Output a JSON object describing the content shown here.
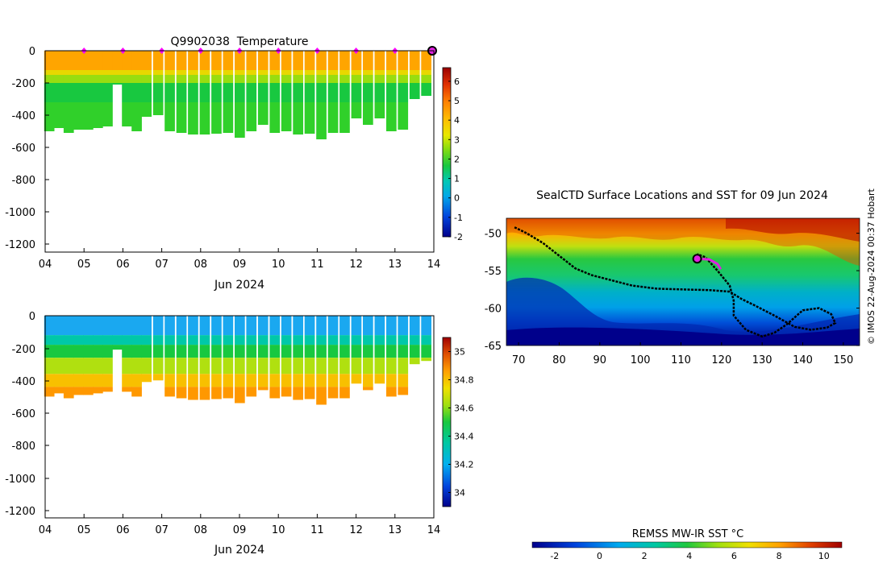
{
  "chart_data": [
    {
      "type": "heatmap",
      "title": "Q9902038  Temperature",
      "xlabel": "Jun 2024",
      "x_ticks": [
        "04",
        "05",
        "06",
        "07",
        "08",
        "09",
        "10",
        "11",
        "12",
        "13",
        "14"
      ],
      "x_range_days": [
        4,
        14
      ],
      "ylim": [
        -1250,
        0
      ],
      "y_ticks": [
        0,
        -200,
        -400,
        -600,
        -800,
        -1000,
        -1200
      ],
      "y_tick_labels": [
        "0",
        "-200",
        "-400",
        "-600",
        "-800",
        "-1000",
        "-1200"
      ],
      "colorbar": {
        "min": -2,
        "max": 6.7,
        "ticks": [
          -2,
          -1,
          0,
          1,
          2,
          3,
          4,
          5,
          6
        ],
        "labels": [
          "-2",
          "-1",
          "0",
          "1",
          "2",
          "3",
          "4",
          "5",
          "6"
        ]
      },
      "profile_times": [
        4.1,
        4.35,
        4.6,
        4.85,
        5.1,
        5.35,
        5.6,
        5.85,
        6.1,
        6.35,
        6.6,
        6.9,
        7.2,
        7.5,
        7.8,
        8.1,
        8.4,
        8.7,
        9.0,
        9.3,
        9.6,
        9.9,
        10.2,
        10.5,
        10.8,
        11.1,
        11.4,
        11.7,
        12.0,
        12.3,
        12.6,
        12.9,
        13.2,
        13.5,
        13.8
      ],
      "profile_max_depths": [
        -500,
        -480,
        -510,
        -490,
        -490,
        -480,
        -470,
        -210,
        -470,
        -500,
        -410,
        -400,
        -500,
        -510,
        -520,
        -520,
        -515,
        -510,
        -540,
        -500,
        -460,
        -510,
        -500,
        -520,
        -515,
        -550,
        -510,
        -510,
        -420,
        -460,
        -420,
        -500,
        -490,
        -300,
        -280
      ],
      "marker_days": [
        5,
        6,
        7,
        8,
        9,
        10,
        11,
        12,
        13
      ],
      "current_day": 14
    },
    {
      "type": "heatmap",
      "title": "",
      "xlabel": "Jun 2024",
      "x_ticks": [
        "04",
        "05",
        "06",
        "07",
        "08",
        "09",
        "10",
        "11",
        "12",
        "13",
        "14"
      ],
      "x_range_days": [
        4,
        14
      ],
      "ylim": [
        -1250,
        0
      ],
      "y_ticks": [
        0,
        -200,
        -400,
        -600,
        -800,
        -1000,
        -1200
      ],
      "y_tick_labels": [
        "0",
        "-200",
        "-400",
        "-600",
        "-800",
        "-1000",
        "-1200"
      ],
      "colorbar": {
        "min": 33.9,
        "max": 35.1,
        "ticks": [
          34,
          34.2,
          34.4,
          34.6,
          34.8,
          35
        ],
        "labels": [
          "34",
          "34.2",
          "34.4",
          "34.6",
          "34.8",
          "35"
        ]
      }
    },
    {
      "type": "scatter",
      "title": "SealCTD Surface Locations and SST for 09 Jun 2024",
      "xlabel": "",
      "ylabel": "",
      "xlim": [
        67,
        154
      ],
      "ylim": [
        -65,
        -48
      ],
      "x_ticks": [
        70,
        80,
        90,
        100,
        110,
        120,
        130,
        140,
        150
      ],
      "x_tick_labels": [
        "70",
        "80",
        "90",
        "100",
        "110",
        "120",
        "130",
        "140",
        "150"
      ],
      "y_ticks": [
        -50,
        -55,
        -60,
        -65
      ],
      "y_tick_labels": [
        "-50",
        "-55",
        "-60",
        "-65"
      ],
      "track": [
        [
          69,
          -49.2
        ],
        [
          72,
          -50
        ],
        [
          76,
          -51.3
        ],
        [
          80,
          -53
        ],
        [
          84,
          -54.7
        ],
        [
          88,
          -55.6
        ],
        [
          93,
          -56.3
        ],
        [
          98,
          -57
        ],
        [
          104,
          -57.4
        ],
        [
          110,
          -57.5
        ],
        [
          117,
          -57.6
        ],
        [
          122,
          -57.8
        ],
        [
          125,
          -58.8
        ],
        [
          128,
          -59.6
        ],
        [
          133,
          -61
        ],
        [
          138,
          -62.5
        ],
        [
          142,
          -62.9
        ],
        [
          146,
          -62.6
        ],
        [
          148,
          -62
        ],
        [
          147,
          -60.8
        ],
        [
          144,
          -60
        ],
        [
          140,
          -60.3
        ],
        [
          136,
          -62.2
        ],
        [
          133,
          -63.3
        ],
        [
          130,
          -63.8
        ],
        [
          126,
          -62.9
        ],
        [
          123,
          -61
        ],
        [
          123,
          -59
        ],
        [
          122,
          -57
        ],
        [
          119,
          -55
        ],
        [
          116,
          -53.2
        ],
        [
          114,
          -52.8
        ]
      ],
      "recent_track": [
        [
          114,
          -53.4
        ],
        [
          117,
          -53.5
        ],
        [
          119,
          -54.1
        ],
        [
          119.8,
          -54.8
        ]
      ],
      "current_position": [
        114,
        -53.4
      ],
      "colorbar": {
        "title": "REMSS MW-IR SST °C",
        "min": -3,
        "max": 10.8,
        "ticks": [
          -2,
          0,
          2,
          4,
          6,
          8,
          10
        ],
        "labels": [
          "-2",
          "0",
          "2",
          "4",
          "6",
          "8",
          "10"
        ]
      }
    }
  ],
  "watermark": "© IMOS 22-Aug-2024 00:37 Hobart"
}
